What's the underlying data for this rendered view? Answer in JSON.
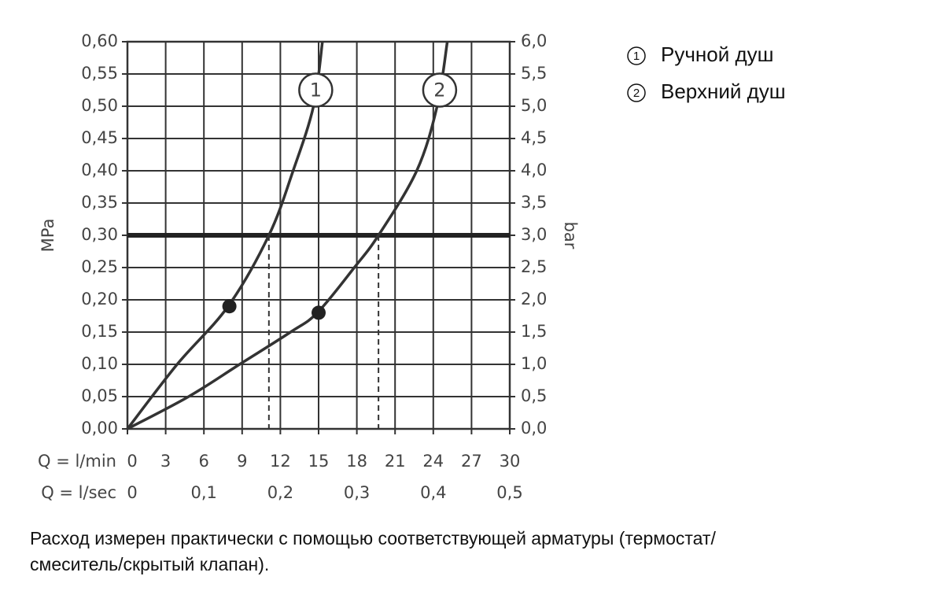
{
  "chart_data": {
    "type": "line",
    "y_label": "MPa",
    "y2_label": "bar",
    "x_label": "Q = l/min",
    "x2_label": "Q = l/sec",
    "xlim": [
      0,
      30
    ],
    "xticks": [
      0,
      3,
      6,
      9,
      12,
      15,
      18,
      21,
      24,
      27,
      30
    ],
    "x2lim": [
      0,
      0.5
    ],
    "x2ticks": [
      0,
      {
        "value": 0.1,
        "label": "0,1"
      },
      {
        "value": 0.2,
        "label": "0,2"
      },
      {
        "value": 0.3,
        "label": "0,3"
      },
      {
        "value": 0.4,
        "label": "0,4"
      },
      {
        "value": 0.5,
        "label": "0,5"
      }
    ],
    "ylim": [
      0,
      0.6
    ],
    "yticks": [
      {
        "value": 0,
        "label": "0,00"
      },
      {
        "value": 0.05,
        "label": "0,05"
      },
      {
        "value": 0.1,
        "label": "0,10"
      },
      {
        "value": 0.15,
        "label": "0,15"
      },
      {
        "value": 0.2,
        "label": "0,20"
      },
      {
        "value": 0.25,
        "label": "0,25"
      },
      {
        "value": 0.3,
        "label": "0,30"
      },
      {
        "value": 0.35,
        "label": "0,35"
      },
      {
        "value": 0.4,
        "label": "0,40"
      },
      {
        "value": 0.45,
        "label": "0,45"
      },
      {
        "value": 0.5,
        "label": "0,50"
      },
      {
        "value": 0.55,
        "label": "0,55"
      },
      {
        "value": 0.6,
        "label": "0,60"
      }
    ],
    "y2lim": [
      0,
      6
    ],
    "y2ticks": [
      {
        "value": 0,
        "label": "0,0"
      },
      {
        "value": 0.5,
        "label": "0,5"
      },
      {
        "value": 1,
        "label": "1,0"
      },
      {
        "value": 1.5,
        "label": "1,5"
      },
      {
        "value": 2,
        "label": "2,0"
      },
      {
        "value": 2.5,
        "label": "2,5"
      },
      {
        "value": 3,
        "label": "3,0"
      },
      {
        "value": 3.5,
        "label": "3,5"
      },
      {
        "value": 4,
        "label": "4,0"
      },
      {
        "value": 4.5,
        "label": "4,5"
      },
      {
        "value": 5,
        "label": "5,0"
      },
      {
        "value": 5.5,
        "label": "5,5"
      },
      {
        "value": 6,
        "label": "6,0"
      }
    ],
    "grid": true,
    "reference_line": 0.3,
    "series": [
      {
        "name": "Ручной душ",
        "label": "1",
        "color": "#333333",
        "x": [
          0,
          3.9,
          7.9,
          11.1,
          13.0,
          14.6,
          15.3
        ],
        "values": [
          0,
          0.1,
          0.19,
          0.3,
          0.4,
          0.5,
          0.6
        ],
        "marker": {
          "x": 8,
          "value": 0.19
        },
        "drop_x": 11.1
      },
      {
        "name": "Верхний душ",
        "label": "2",
        "color": "#333333",
        "x": [
          0,
          4.8,
          8.8,
          12.8,
          14.9,
          17.8,
          19.7,
          22.7,
          24.3,
          25.1
        ],
        "values": [
          0,
          0.05,
          0.1,
          0.15,
          0.18,
          0.25,
          0.3,
          0.4,
          0.5,
          0.6
        ],
        "marker": {
          "x": 15,
          "value": 0.18
        },
        "drop_x": 19.7
      }
    ],
    "legend_position": "top-right",
    "note": "Расход измерен практически с помощью соответствующей арматуры (термостат/",
    "note_line2": "смеситель/скрытый клапан)."
  }
}
